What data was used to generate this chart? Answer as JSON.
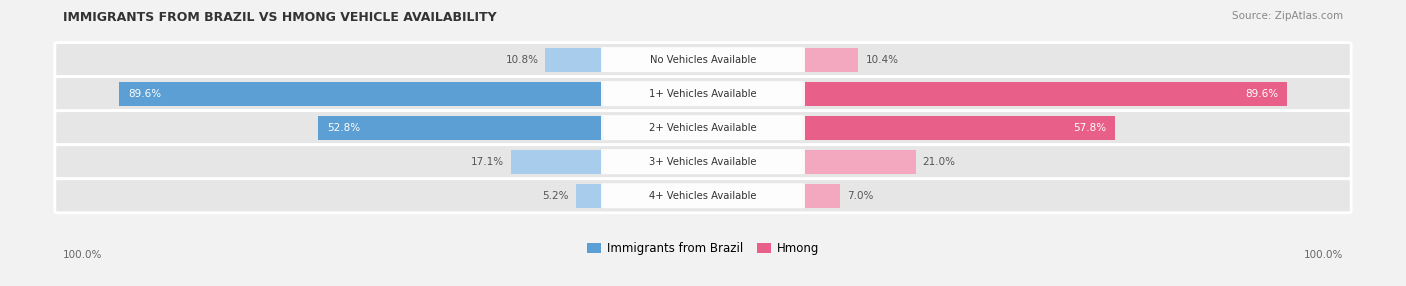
{
  "title": "IMMIGRANTS FROM BRAZIL VS HMONG VEHICLE AVAILABILITY",
  "source": "Source: ZipAtlas.com",
  "categories": [
    "No Vehicles Available",
    "1+ Vehicles Available",
    "2+ Vehicles Available",
    "3+ Vehicles Available",
    "4+ Vehicles Available"
  ],
  "brazil_values": [
    10.8,
    89.6,
    52.8,
    17.1,
    5.2
  ],
  "hmong_values": [
    10.4,
    89.6,
    57.8,
    21.0,
    7.0
  ],
  "brazil_color_dark": "#5b9fd4",
  "brazil_color_light": "#a8cceb",
  "hmong_color_dark": "#e8608a",
  "hmong_color_light": "#f4a8c0",
  "bg_color": "#f2f2f2",
  "row_bg_color": "#e8e8e8",
  "max_val": 100.0,
  "label_color_dark": "#555555",
  "title_color": "#333333",
  "legend_brazil": "Immigrants from Brazil",
  "legend_hmong": "Hmong",
  "dark_threshold": 30.0
}
